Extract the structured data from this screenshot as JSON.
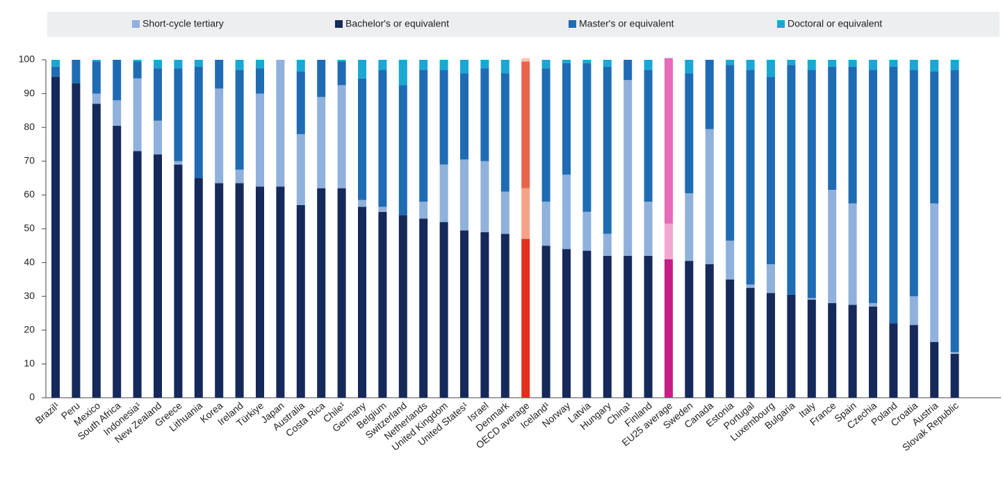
{
  "chart_data": {
    "type": "stacked_bar",
    "categories": [
      "Brazil¹",
      "Peru",
      "Mexico",
      "South Africa",
      "Indonesia¹",
      "New Zealand",
      "Greece",
      "Lithuania",
      "Korea",
      "Ireland",
      "Türkiye",
      "Japan",
      "Australia",
      "Costa Rica",
      "Chile¹",
      "Germany",
      "Belgium",
      "Switzerland",
      "Netherlands",
      "United Kingdom",
      "United States¹",
      "Israel",
      "Denmark",
      "OECD average",
      "Iceland¹",
      "Norway",
      "Latvia",
      "Hungary",
      "China¹",
      "Finland",
      "EU25 average",
      "Sweden",
      "Canada",
      "Estonia",
      "Portugal",
      "Luxembourg",
      "Bulgaria",
      "Italy",
      "France",
      "Spain",
      "Czechia",
      "Poland",
      "Croatia",
      "Austria",
      "Slovak Republic"
    ],
    "series": [
      {
        "name": "Bachelor's or equivalent",
        "color": "#15295a",
        "values": [
          95,
          93,
          87,
          80.5,
          73,
          72,
          69,
          65,
          63.5,
          63.5,
          62.5,
          62.5,
          57,
          62,
          62,
          56.5,
          55,
          54,
          53,
          52,
          49.5,
          49,
          48.5,
          47,
          45,
          44,
          43.5,
          42,
          42,
          42,
          41,
          40.5,
          39.5,
          35,
          32.5,
          31,
          30.5,
          29,
          28,
          27.5,
          27,
          22,
          21.5,
          16.5,
          13
        ]
      },
      {
        "name": "Short-cycle tertiary",
        "color": "#8fb1dc",
        "values": [
          0,
          0,
          3,
          7.5,
          21.5,
          10,
          1,
          0,
          28,
          4,
          27.5,
          37.5,
          21,
          27,
          30.5,
          2,
          1.5,
          0,
          5,
          17,
          21,
          21,
          12.5,
          15,
          13,
          22,
          11.5,
          6.5,
          52,
          16,
          10.5,
          20,
          40,
          11.5,
          1,
          8.5,
          0,
          0.5,
          33.5,
          30,
          1,
          0,
          8.5,
          41,
          0.5
        ]
      },
      {
        "name": "Master's or equivalent",
        "color": "#1f6cb4",
        "values": [
          3,
          7,
          9.5,
          12,
          5,
          15.5,
          27.5,
          33,
          8.5,
          29.5,
          7.5,
          0,
          18.5,
          11,
          7,
          36,
          40.5,
          38.5,
          39,
          28,
          25.5,
          27.5,
          35,
          37.5,
          39.5,
          33,
          44,
          49.5,
          6,
          39,
          49,
          35.5,
          20.5,
          52,
          63.5,
          55.5,
          68,
          67.5,
          36.5,
          40.5,
          69,
          76,
          67,
          39,
          83.5
        ]
      },
      {
        "name": "Doctoral or equivalent",
        "color": "#1aa7d3",
        "values": [
          2,
          0,
          0.5,
          0,
          0.5,
          2.5,
          2.5,
          2,
          0,
          3,
          2.5,
          0,
          3.5,
          0,
          0.5,
          5.5,
          3,
          7.5,
          3,
          3,
          4,
          2.5,
          4,
          1,
          2.5,
          1,
          1,
          2,
          0,
          3,
          0,
          4,
          0,
          1.5,
          3,
          5,
          1.5,
          3,
          2,
          2,
          3,
          2,
          3,
          3.5,
          3
        ]
      }
    ],
    "highlights": [
      {
        "category": "OECD average",
        "colors": [
          "#e2301d",
          "#f5a287",
          "#e8644b",
          "#f7c6b2"
        ]
      },
      {
        "category": "EU25 average",
        "colors": [
          "#c81e88",
          "#f1a7d0",
          "#e66bba",
          "#f5cbe3"
        ]
      }
    ],
    "legend_order": [
      1,
      0,
      2,
      3
    ],
    "ylim": [
      0,
      100
    ],
    "yticks": [
      0,
      10,
      20,
      30,
      40,
      50,
      60,
      70,
      80,
      90,
      100
    ]
  }
}
